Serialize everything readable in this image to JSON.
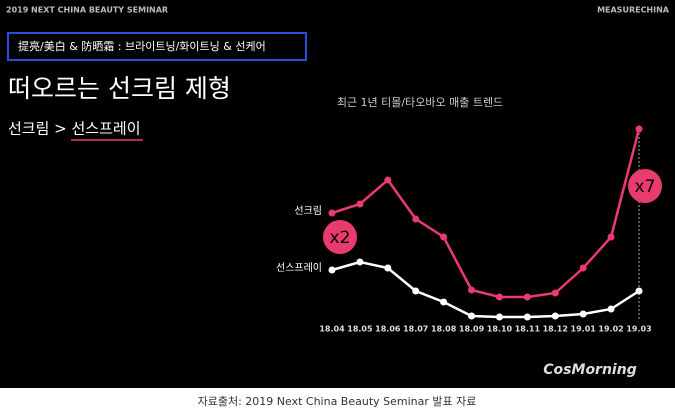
{
  "header_left": "2019 NEXT CHINA BEAUTY SEMINAR",
  "header_right": "MEASURECHINA",
  "topic_box": "提亮/美白 & 防晒霜 : 브라이트닝/화이트닝 & 선케어",
  "headline": "떠오르는 선크림 제형",
  "subheadline": "선크림 > 선스프레이",
  "watermark": "CosMorning",
  "caption": "자료출처: 2019 Next China Beauty Seminar 발표 자료",
  "chart_data": {
    "type": "line",
    "title": "최근 1년 티몰/타오바오 매출 트렌드",
    "categories": [
      "18.04",
      "18.05",
      "18.06",
      "18.07",
      "18.08",
      "18.09",
      "18.10",
      "18.11",
      "18.12",
      "19.01",
      "19.02",
      "19.03"
    ],
    "series": [
      {
        "name": "선크림",
        "color": "#ea3b6e",
        "values": [
          107,
          116,
          140,
          101,
          83,
          30,
          23,
          23,
          27,
          52,
          83,
          191
        ]
      },
      {
        "name": "선스프레이",
        "color": "#ffffff",
        "values": [
          50,
          58,
          52,
          29,
          18,
          4,
          3,
          3,
          4,
          6,
          11,
          29
        ]
      }
    ],
    "ylim": [
      0,
      200
    ],
    "annotations": [
      "x2",
      "x7"
    ]
  }
}
